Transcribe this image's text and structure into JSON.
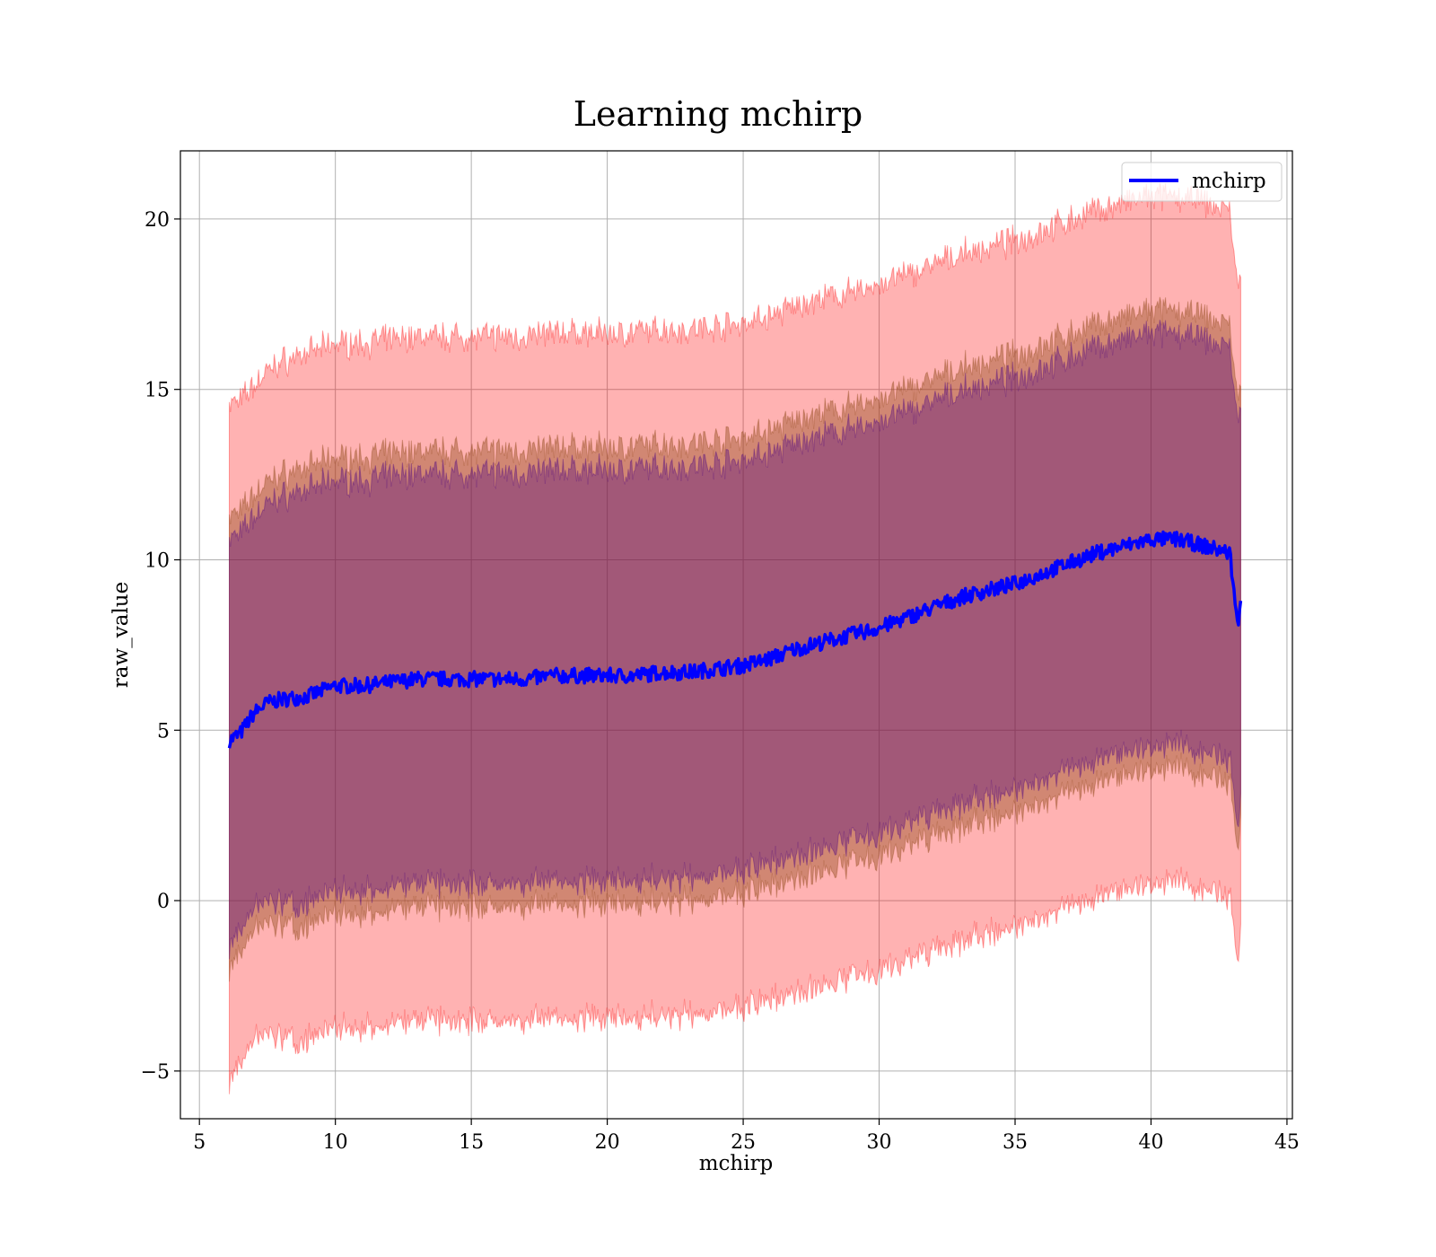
{
  "chart_data": {
    "type": "line",
    "title": "Learning mchirp",
    "xlabel": "mchirp",
    "ylabel": "raw_value",
    "xlim": [
      4.3,
      45.2
    ],
    "ylim": [
      -6.4,
      22.0
    ],
    "xticks": [
      5,
      10,
      15,
      20,
      25,
      30,
      35,
      40,
      45
    ],
    "yticks": [
      -5,
      0,
      5,
      10,
      15,
      20
    ],
    "ytick_labels": [
      "−5",
      "0",
      "5",
      "10",
      "15",
      "20"
    ],
    "grid": true,
    "legend": {
      "position": "top-right",
      "entries": [
        "mchirp"
      ]
    },
    "colors": {
      "mean_line": "#0000ff",
      "band_3sigma": "#ff0000",
      "band_2sigma": "#8b4513",
      "band_1sigma": "#4b0082"
    },
    "series": [
      {
        "name": "mchirp",
        "x": [
          6.1,
          6.5,
          7.0,
          7.5,
          8.0,
          9.0,
          10.0,
          11.0,
          12.0,
          13.0,
          14.0,
          15.0,
          16.0,
          17.0,
          18.0,
          19.0,
          20.0,
          21.0,
          22.0,
          23.0,
          24.0,
          25.0,
          26.0,
          27.0,
          28.0,
          29.0,
          30.0,
          31.0,
          32.0,
          33.0,
          34.0,
          35.0,
          36.0,
          37.0,
          38.0,
          39.0,
          40.0,
          41.0,
          42.0,
          42.9,
          43.2,
          43.3
        ],
        "mean": [
          4.7,
          4.9,
          5.5,
          5.8,
          5.9,
          6.0,
          6.3,
          6.3,
          6.4,
          6.5,
          6.5,
          6.5,
          6.5,
          6.5,
          6.6,
          6.6,
          6.6,
          6.6,
          6.7,
          6.7,
          6.8,
          6.9,
          7.1,
          7.4,
          7.6,
          7.8,
          8.0,
          8.3,
          8.6,
          8.9,
          9.1,
          9.3,
          9.6,
          9.9,
          10.2,
          10.4,
          10.6,
          10.6,
          10.4,
          10.2,
          8.0,
          8.8
        ],
        "sigma": [
          3.3,
          3.25,
          3.2,
          3.25,
          3.3,
          3.35,
          3.35,
          3.35,
          3.35,
          3.35,
          3.35,
          3.35,
          3.35,
          3.35,
          3.35,
          3.35,
          3.35,
          3.35,
          3.35,
          3.35,
          3.35,
          3.35,
          3.35,
          3.35,
          3.35,
          3.35,
          3.35,
          3.35,
          3.35,
          3.35,
          3.35,
          3.35,
          3.35,
          3.35,
          3.35,
          3.35,
          3.35,
          3.35,
          3.35,
          3.35,
          3.3,
          3.2
        ]
      }
    ]
  }
}
